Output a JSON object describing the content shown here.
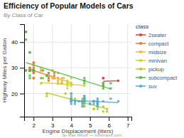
{
  "chart_data": {
    "type": "scatter",
    "title": "Efficiency of Popular Models of Cars",
    "subtitle": "By Class of Car",
    "xlabel": "Engine Displacement (liters)",
    "ylabel": "Highway Miles per Gallon",
    "footer": "by Max Woolf — minimaxir.com",
    "legend_title": "class",
    "legend": "right",
    "grid": true,
    "xlim": [
      1.5,
      7.2
    ],
    "ylim": [
      11,
      47
    ],
    "xticks": [
      2,
      3,
      4,
      5,
      6,
      7
    ],
    "yticks": [
      20,
      30,
      40
    ],
    "series": [
      {
        "name": "2seater",
        "color": "#d63b3b",
        "marker": "square",
        "x": [
          5.7,
          5.7,
          6.5,
          5.7,
          5.7
        ],
        "values": [
          26,
          26,
          25,
          24,
          23
        ],
        "fit": {
          "x": [
            5.7,
            6.5
          ],
          "values": [
            24.75,
            25.0
          ]
        }
      },
      {
        "name": "compact",
        "color": "#f07030",
        "marker": "square",
        "x": [
          1.8,
          1.8,
          2.0,
          2.0,
          2.0,
          2.0,
          2.8,
          2.8,
          3.1,
          1.8,
          1.8,
          2.0,
          2.0,
          2.8,
          2.8,
          3.1,
          3.1,
          1.8,
          1.8,
          2.0,
          2.0,
          2.0,
          2.0,
          2.8,
          2.8,
          3.1,
          1.8,
          1.8,
          2.0,
          2.0,
          2.0,
          2.0
        ],
        "values": [
          29,
          29,
          31,
          30,
          26,
          26,
          26,
          26,
          27,
          30,
          29,
          32,
          32,
          28,
          25,
          28,
          26,
          29,
          29,
          28,
          29,
          29,
          28,
          28,
          27,
          26,
          29,
          30,
          29,
          29,
          29,
          29
        ],
        "fit": {
          "x": [
            1.8,
            3.1
          ],
          "values": [
            29.3935,
            26.3671
          ]
        }
      },
      {
        "name": "midsize",
        "color": "#e8b840",
        "marker": "square",
        "x": [
          2.4,
          2.4,
          3.1,
          3.5,
          3.6,
          2.4,
          3.0,
          3.5,
          3.3,
          3.3,
          4.0,
          4.0,
          2.4,
          2.4,
          3.0,
          3.0,
          3.3,
          2.5,
          2.5,
          3.5,
          3.5,
          3.5,
          3.3,
          3.3,
          3.3,
          3.8,
          4.0
        ],
        "values": [
          30,
          29,
          26,
          26,
          26,
          24,
          26,
          24,
          26,
          26,
          26,
          24,
          29,
          29,
          29,
          29,
          26,
          26,
          26,
          24,
          25,
          24,
          28,
          25,
          24,
          24,
          24
        ],
        "fit": {
          "x": [
            2.4,
            4.0
          ],
          "values": [
            27.8856,
            24.2352
          ]
        }
      },
      {
        "name": "minivan",
        "color": "#d4d030",
        "marker": "square",
        "x": [
          2.4,
          3.3,
          3.8,
          3.8,
          3.8,
          3.3,
          3.8,
          3.8,
          4.0,
          4.0,
          4.7
        ],
        "values": [
          24,
          24,
          23,
          22,
          24,
          24,
          25,
          24,
          24,
          23,
          23
        ],
        "fit": {
          "x": [
            2.4,
            4.7
          ],
          "values": [
            24.2382,
            23.1734
          ]
        }
      },
      {
        "name": "pickup",
        "color": "#b8c820",
        "marker": "square",
        "x": [
          2.7,
          2.7,
          3.7,
          4.7,
          4.7,
          4.7,
          5.2,
          5.2,
          5.7,
          5.9,
          4.0,
          4.2,
          4.6,
          4.6,
          4.6,
          5.4,
          5.4,
          5.4,
          4.0,
          4.0,
          4.6,
          5.0,
          5.4,
          5.4,
          5.4,
          5.4,
          4.7,
          5.2,
          5.7,
          5.9,
          4.6,
          5.4
        ],
        "values": [
          20,
          19,
          20,
          17,
          15,
          17,
          17,
          14,
          15,
          14,
          20,
          18,
          18,
          17,
          17,
          15,
          15,
          15,
          17,
          17,
          16,
          16,
          17,
          15,
          16,
          16,
          15,
          14,
          13,
          13,
          15,
          14
        ],
        "fit": {
          "x": [
            2.7,
            5.9
          ],
          "values": [
            20.2937,
            14.0356
          ]
        }
      },
      {
        "name": "subcompact",
        "color": "#50b840",
        "marker": "square",
        "x": [
          1.8,
          1.8,
          2.5,
          1.8,
          1.8,
          4.7,
          5.7,
          5.7,
          6.1,
          4.7,
          4.7,
          4.7,
          5.7,
          6.1,
          1.6,
          1.6,
          1.6,
          1.6,
          1.6,
          1.8,
          1.8,
          1.8,
          1.8,
          2.0,
          2.4,
          2.0,
          2.0,
          2.0,
          2.7,
          2.7
        ],
        "values": [
          36,
          36,
          29,
          26,
          27,
          24,
          23,
          22,
          22,
          25,
          26,
          25,
          24,
          24,
          44,
          44,
          41,
          29,
          29,
          29,
          29,
          29,
          29,
          29,
          26,
          29,
          29,
          29,
          27,
          27
        ],
        "fit": {
          "x": [
            1.6,
            6.1
          ],
          "values": [
            32.0379,
            21.7655
          ]
        }
      },
      {
        "name": "suv",
        "color": "#50a8d8",
        "marker": "square",
        "x": [
          4.0,
          4.0,
          4.0,
          4.0,
          4.7,
          4.7,
          4.7,
          5.7,
          6.1,
          4.0,
          4.2,
          4.4,
          4.6,
          5.4,
          5.4,
          5.4,
          5.4,
          4.6,
          5.0,
          4.6,
          5.4,
          5.4,
          6.5,
          5.4,
          5.4,
          4.7,
          4.7,
          4.7,
          5.2,
          5.2,
          4.7,
          4.7,
          5.2,
          4.0,
          4.0,
          4.6,
          5.0,
          4.2,
          4.2,
          4.6,
          4.6,
          4.6,
          5.4,
          4.0,
          4.0,
          4.6,
          5.4,
          4.0,
          4.0,
          4.7,
          4.7,
          5.2,
          5.2
        ],
        "values": [
          19,
          20,
          18,
          18,
          19,
          18,
          18,
          17,
          18,
          17,
          16,
          17,
          17,
          16,
          17,
          15,
          16,
          17,
          16,
          17,
          17,
          17,
          17,
          16,
          17,
          18,
          17,
          19,
          17,
          17,
          16,
          17,
          17,
          17,
          17,
          16,
          16,
          17,
          17,
          17,
          15,
          17,
          17,
          17,
          18,
          17,
          18,
          16,
          17,
          18,
          18,
          17,
          16
        ],
        "fit": {
          "x": [
            4.0,
            6.5
          ],
          "values": [
            17.3862,
            16.4453
          ]
        }
      }
    ]
  }
}
